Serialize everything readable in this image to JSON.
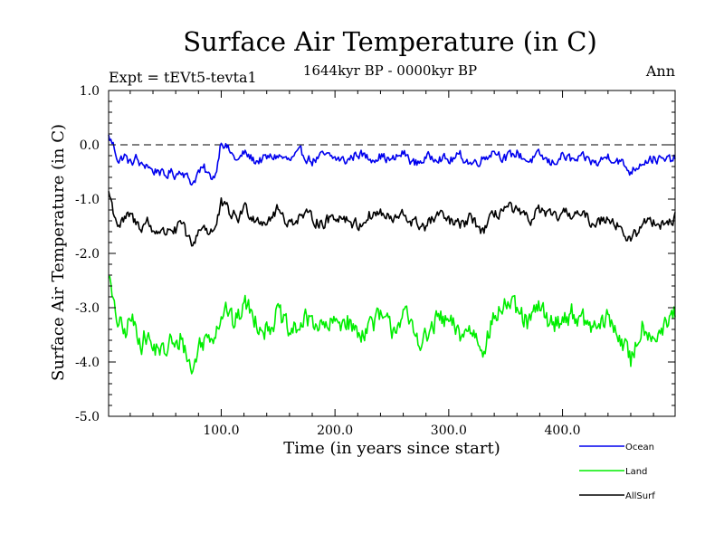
{
  "chart_data": {
    "type": "line",
    "title": "Surface Air Temperature (in C)",
    "subtitle": "1644kyr BP - 0000kyr BP",
    "left_label": "Expt = tEVt5-tevta1",
    "right_label": "Ann",
    "xlabel": "Time (in years since start)",
    "ylabel": "Surface Air Temperature (in C)",
    "xlim": [
      1,
      499
    ],
    "ylim": [
      -5.0,
      1.0
    ],
    "x_ticks": [
      {
        "value": 100,
        "label": "100.0"
      },
      {
        "value": 200,
        "label": "200.0"
      },
      {
        "value": 300,
        "label": "300.0"
      },
      {
        "value": 400,
        "label": "400.0"
      }
    ],
    "y_ticks": [
      {
        "value": 1.0,
        "label": "1.0"
      },
      {
        "value": 0.0,
        "label": "0.0"
      },
      {
        "value": -1.0,
        "label": "-1.0"
      },
      {
        "value": -2.0,
        "label": "-2.0"
      },
      {
        "value": -3.0,
        "label": "-3.0"
      },
      {
        "value": -4.0,
        "label": "-4.0"
      },
      {
        "value": -5.0,
        "label": "-5.0"
      }
    ],
    "reference_line": {
      "y": 0.0,
      "style": "dashed"
    },
    "legend_position": "bottom-right",
    "series": [
      {
        "name": "Ocean",
        "color": "#0000ee",
        "x": [
          1,
          5,
          10,
          15,
          20,
          25,
          30,
          35,
          40,
          45,
          50,
          55,
          60,
          65,
          70,
          75,
          80,
          85,
          90,
          95,
          100,
          105,
          110,
          115,
          120,
          130,
          140,
          150,
          160,
          170,
          180,
          190,
          200,
          210,
          220,
          230,
          240,
          250,
          260,
          270,
          280,
          290,
          300,
          310,
          320,
          330,
          340,
          350,
          360,
          370,
          380,
          390,
          400,
          410,
          420,
          430,
          440,
          450,
          460,
          470,
          480,
          490,
          499
        ],
        "values": [
          0.15,
          0.0,
          -0.3,
          -0.2,
          -0.35,
          -0.25,
          -0.4,
          -0.35,
          -0.5,
          -0.45,
          -0.6,
          -0.5,
          -0.55,
          -0.45,
          -0.6,
          -0.7,
          -0.5,
          -0.45,
          -0.6,
          -0.55,
          0.1,
          -0.05,
          -0.2,
          -0.3,
          -0.15,
          -0.3,
          -0.25,
          -0.2,
          -0.3,
          -0.15,
          -0.3,
          -0.2,
          -0.25,
          -0.3,
          -0.15,
          -0.25,
          -0.2,
          -0.3,
          -0.15,
          -0.35,
          -0.25,
          -0.2,
          -0.3,
          -0.2,
          -0.35,
          -0.25,
          -0.1,
          -0.25,
          -0.15,
          -0.3,
          -0.2,
          -0.35,
          -0.2,
          -0.3,
          -0.25,
          -0.35,
          -0.2,
          -0.3,
          -0.5,
          -0.3,
          -0.25,
          -0.3,
          -0.25
        ]
      },
      {
        "name": "Land",
        "color": "#00ee00",
        "x": [
          1,
          5,
          10,
          15,
          20,
          25,
          30,
          35,
          40,
          45,
          50,
          55,
          60,
          65,
          70,
          75,
          80,
          85,
          90,
          95,
          100,
          105,
          110,
          115,
          120,
          130,
          140,
          150,
          160,
          170,
          180,
          190,
          200,
          210,
          220,
          230,
          240,
          250,
          260,
          270,
          280,
          290,
          300,
          310,
          320,
          330,
          340,
          350,
          360,
          370,
          380,
          390,
          400,
          410,
          420,
          430,
          440,
          450,
          460,
          470,
          480,
          490,
          499
        ],
        "values": [
          -2.3,
          -3.0,
          -3.3,
          -3.5,
          -3.2,
          -3.4,
          -3.6,
          -3.5,
          -3.8,
          -3.7,
          -3.9,
          -3.6,
          -3.8,
          -3.5,
          -3.9,
          -4.2,
          -3.7,
          -3.6,
          -3.5,
          -3.4,
          -3.1,
          -3.0,
          -3.3,
          -3.2,
          -2.9,
          -3.2,
          -3.4,
          -3.1,
          -3.5,
          -3.3,
          -3.2,
          -3.4,
          -3.3,
          -3.2,
          -3.5,
          -3.3,
          -3.2,
          -3.4,
          -3.1,
          -3.5,
          -3.6,
          -3.2,
          -3.3,
          -3.5,
          -3.4,
          -3.7,
          -3.2,
          -2.9,
          -3.1,
          -3.3,
          -3.0,
          -3.3,
          -3.2,
          -3.1,
          -3.3,
          -3.4,
          -3.2,
          -3.5,
          -4.0,
          -3.3,
          -3.5,
          -3.4,
          -3.1
        ]
      },
      {
        "name": "AllSurf",
        "color": "#000000",
        "x": [
          1,
          5,
          10,
          15,
          20,
          25,
          30,
          35,
          40,
          45,
          50,
          55,
          60,
          65,
          70,
          75,
          80,
          85,
          90,
          95,
          100,
          105,
          110,
          115,
          120,
          130,
          140,
          150,
          160,
          170,
          180,
          190,
          200,
          210,
          220,
          230,
          240,
          250,
          260,
          270,
          280,
          290,
          300,
          310,
          320,
          330,
          340,
          350,
          360,
          370,
          380,
          390,
          400,
          410,
          420,
          430,
          440,
          450,
          460,
          470,
          480,
          490,
          499
        ],
        "values": [
          -0.85,
          -1.2,
          -1.5,
          -1.4,
          -1.3,
          -1.45,
          -1.5,
          -1.4,
          -1.6,
          -1.55,
          -1.65,
          -1.5,
          -1.6,
          -1.45,
          -1.7,
          -1.9,
          -1.55,
          -1.5,
          -1.6,
          -1.55,
          -1.1,
          -1.2,
          -1.3,
          -1.35,
          -1.15,
          -1.35,
          -1.4,
          -1.2,
          -1.45,
          -1.3,
          -1.35,
          -1.45,
          -1.3,
          -1.35,
          -1.5,
          -1.3,
          -1.25,
          -1.4,
          -1.3,
          -1.45,
          -1.5,
          -1.3,
          -1.4,
          -1.5,
          -1.35,
          -1.6,
          -1.3,
          -1.15,
          -1.25,
          -1.4,
          -1.2,
          -1.35,
          -1.3,
          -1.25,
          -1.35,
          -1.45,
          -1.3,
          -1.5,
          -1.8,
          -1.45,
          -1.4,
          -1.45,
          -1.35
        ]
      }
    ]
  }
}
